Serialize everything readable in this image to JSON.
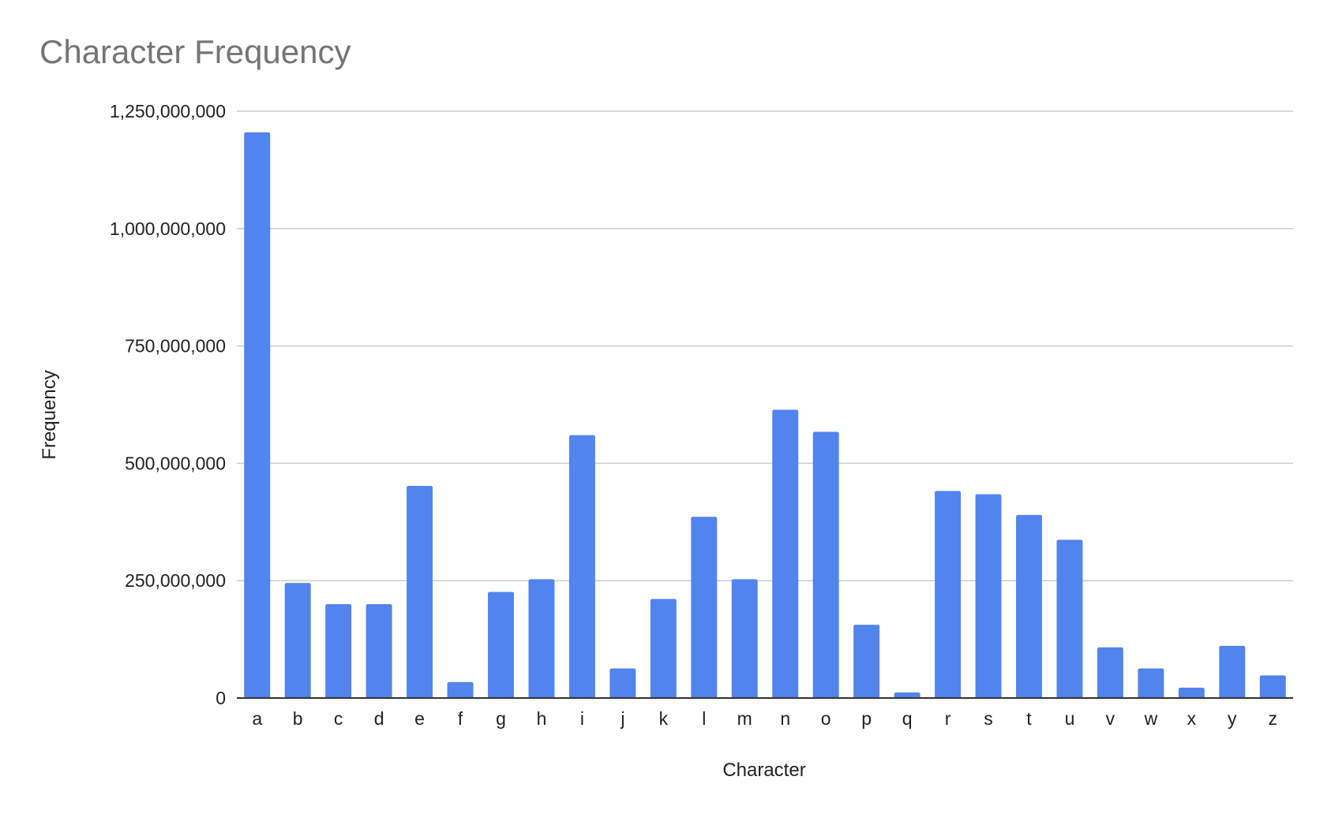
{
  "colors": {
    "bar": "#5184ec",
    "grid": "#cccccc",
    "title": "#757575"
  },
  "chart_data": {
    "type": "bar",
    "title": "Character Frequency",
    "xlabel": "Character",
    "ylabel": "Frequency",
    "ylim": [
      0,
      1250000000
    ],
    "yticks": [
      0,
      250000000,
      500000000,
      750000000,
      1000000000,
      1250000000
    ],
    "ytick_labels": [
      "0",
      "250,000,000",
      "500,000,000",
      "750,000,000",
      "1,000,000,000",
      "1,250,000,000"
    ],
    "grid": true,
    "categories": [
      "a",
      "b",
      "c",
      "d",
      "e",
      "f",
      "g",
      "h",
      "i",
      "j",
      "k",
      "l",
      "m",
      "n",
      "o",
      "p",
      "q",
      "r",
      "s",
      "t",
      "u",
      "v",
      "w",
      "x",
      "y",
      "z"
    ],
    "series": [
      {
        "values": [
          1205000000,
          245000000,
          200000000,
          200000000,
          452000000,
          34000000,
          226000000,
          253000000,
          560000000,
          63000000,
          211000000,
          386000000,
          253000000,
          614000000,
          567000000,
          156000000,
          12000000,
          441000000,
          434000000,
          390000000,
          337000000,
          108000000,
          63000000,
          22000000,
          111000000,
          48000000
        ]
      }
    ]
  }
}
